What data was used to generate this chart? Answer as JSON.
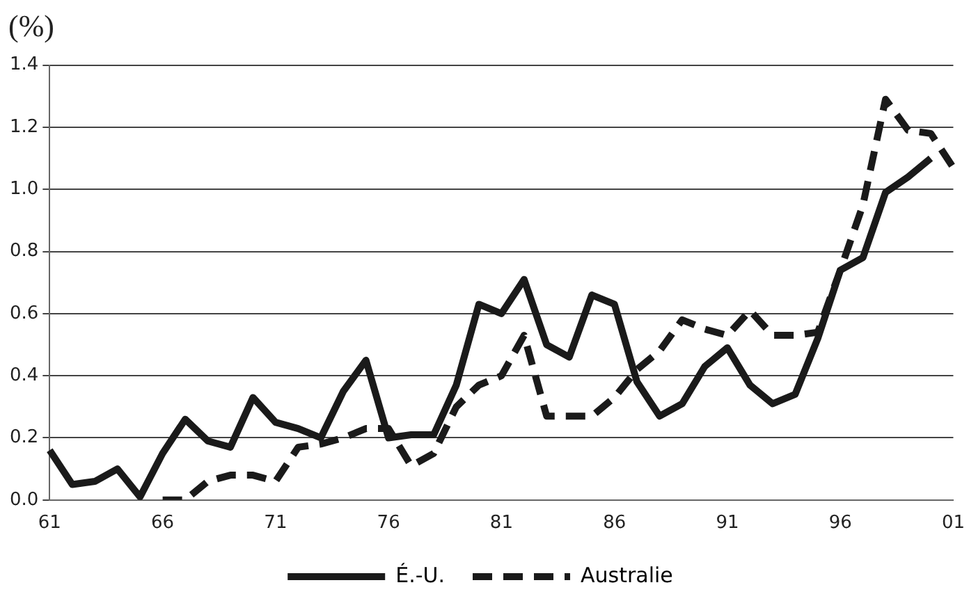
{
  "chart_data": {
    "type": "line",
    "ylabel": "(%)",
    "categories": [
      "61",
      null,
      null,
      null,
      null,
      "66",
      null,
      null,
      null,
      null,
      "71",
      null,
      null,
      null,
      null,
      "76",
      null,
      null,
      null,
      null,
      "81",
      null,
      null,
      null,
      null,
      "86",
      null,
      null,
      null,
      null,
      "91",
      null,
      null,
      null,
      null,
      "96",
      null,
      null,
      null,
      null,
      "01"
    ],
    "series": [
      {
        "name": "É.-U.",
        "color": "#1a1a1a",
        "line_style": "solid",
        "values": [
          0.16,
          0.05,
          0.06,
          0.1,
          0.01,
          0.15,
          0.26,
          0.19,
          0.17,
          0.33,
          0.25,
          0.23,
          0.2,
          0.35,
          0.45,
          0.2,
          0.21,
          0.21,
          0.37,
          0.63,
          0.6,
          0.71,
          0.5,
          0.46,
          0.66,
          0.63,
          0.38,
          0.27,
          0.31,
          0.43,
          0.49,
          0.37,
          0.31,
          0.34,
          0.52,
          0.74,
          0.78,
          0.99,
          1.04,
          1.1,
          null
        ]
      },
      {
        "name": "Australie",
        "color": "#1a1a1a",
        "line_style": "dashed",
        "values": [
          null,
          null,
          null,
          null,
          null,
          0.0,
          0.0,
          0.06,
          0.08,
          0.08,
          0.06,
          0.17,
          0.18,
          0.2,
          0.23,
          0.23,
          0.11,
          0.15,
          0.3,
          0.37,
          0.4,
          0.53,
          0.27,
          0.27,
          0.27,
          0.33,
          0.42,
          0.48,
          0.58,
          0.55,
          0.53,
          0.61,
          0.53,
          0.53,
          0.54,
          0.74,
          0.95,
          1.29,
          1.19,
          1.18,
          1.07
        ]
      }
    ],
    "ylim": [
      0,
      1.4
    ],
    "yticks": [
      {
        "value": 0,
        "label": "0.0"
      },
      {
        "value": 0.2,
        "label": "0.2"
      },
      {
        "value": 0.4,
        "label": "0.4"
      },
      {
        "value": 0.6,
        "label": "0.6"
      },
      {
        "value": 0.8,
        "label": "0.8"
      },
      {
        "value": 1,
        "label": "1.0"
      },
      {
        "value": 1.2,
        "label": "1.2"
      },
      {
        "value": 1.4,
        "label": "1.4"
      }
    ],
    "grid": "y",
    "legend": "bottom",
    "marker": "none"
  }
}
